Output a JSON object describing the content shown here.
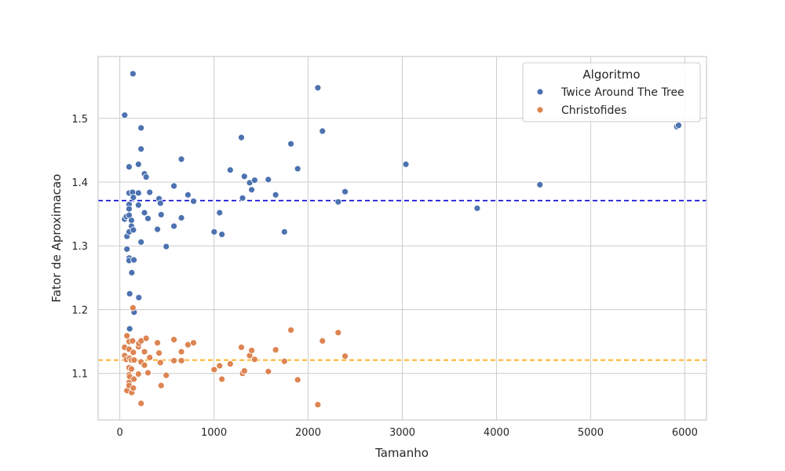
{
  "chart_data": {
    "type": "scatter",
    "title": "",
    "xlabel": "Tamanho",
    "ylabel": "Fator de Aproximacao",
    "xlim": [
      -230,
      6230
    ],
    "ylim": [
      1.027,
      1.597
    ],
    "xticks": [
      0,
      1000,
      2000,
      3000,
      4000,
      5000,
      6000
    ],
    "yticks": [
      1.1,
      1.2,
      1.3,
      1.4,
      1.5
    ],
    "grid": true,
    "legend": {
      "title": "Algoritmo",
      "placement": "top-right"
    },
    "series": [
      {
        "name": "Twice Around The Tree",
        "color": "#4c72b0",
        "mean_line": 1.371,
        "mean_line_color": "#0000cd",
        "points": [
          [
            52,
            1.505
          ],
          [
            140,
            1.57
          ],
          [
            51,
            1.342
          ],
          [
            70,
            1.346
          ],
          [
            76,
            1.315
          ],
          [
            76,
            1.295
          ],
          [
            99,
            1.424
          ],
          [
            99,
            1.383
          ],
          [
            99,
            1.365
          ],
          [
            99,
            1.358
          ],
          [
            99,
            1.348
          ],
          [
            99,
            1.322
          ],
          [
            99,
            1.281
          ],
          [
            99,
            1.277
          ],
          [
            105,
            1.225
          ],
          [
            105,
            1.17
          ],
          [
            124,
            1.34
          ],
          [
            124,
            1.331
          ],
          [
            127,
            1.258
          ],
          [
            136,
            1.384
          ],
          [
            144,
            1.376
          ],
          [
            144,
            1.325
          ],
          [
            150,
            1.278
          ],
          [
            152,
            1.196
          ],
          [
            198,
            1.428
          ],
          [
            198,
            1.383
          ],
          [
            198,
            1.364
          ],
          [
            202,
            1.219
          ],
          [
            226,
            1.485
          ],
          [
            226,
            1.452
          ],
          [
            226,
            1.306
          ],
          [
            262,
            1.413
          ],
          [
            262,
            1.352
          ],
          [
            280,
            1.408
          ],
          [
            299,
            1.343
          ],
          [
            318,
            1.384
          ],
          [
            400,
            1.326
          ],
          [
            417,
            1.374
          ],
          [
            431,
            1.367
          ],
          [
            439,
            1.349
          ],
          [
            493,
            1.299
          ],
          [
            575,
            1.394
          ],
          [
            575,
            1.331
          ],
          [
            654,
            1.436
          ],
          [
            654,
            1.344
          ],
          [
            724,
            1.38
          ],
          [
            783,
            1.37
          ],
          [
            1002,
            1.322
          ],
          [
            1060,
            1.352
          ],
          [
            1084,
            1.318
          ],
          [
            1173,
            1.419
          ],
          [
            1291,
            1.47
          ],
          [
            1304,
            1.375
          ],
          [
            1323,
            1.409
          ],
          [
            1379,
            1.399
          ],
          [
            1400,
            1.388
          ],
          [
            1432,
            1.403
          ],
          [
            1577,
            1.404
          ],
          [
            1655,
            1.38
          ],
          [
            1748,
            1.322
          ],
          [
            1817,
            1.46
          ],
          [
            1889,
            1.421
          ],
          [
            2103,
            1.548
          ],
          [
            2152,
            1.48
          ],
          [
            2319,
            1.369
          ],
          [
            2392,
            1.385
          ],
          [
            3038,
            1.428
          ],
          [
            3795,
            1.359
          ],
          [
            4461,
            1.396
          ],
          [
            5915,
            1.487
          ],
          [
            5934,
            1.489
          ]
        ]
      },
      {
        "name": "Christofides",
        "color": "#dd8452",
        "mean_line": 1.121,
        "mean_line_color": "#ffa500",
        "points": [
          [
            51,
            1.141
          ],
          [
            52,
            1.128
          ],
          [
            70,
            1.122
          ],
          [
            76,
            1.159
          ],
          [
            76,
            1.073
          ],
          [
            99,
            1.15
          ],
          [
            99,
            1.138
          ],
          [
            99,
            1.109
          ],
          [
            99,
            1.098
          ],
          [
            99,
            1.086
          ],
          [
            99,
            1.081
          ],
          [
            105,
            1.124
          ],
          [
            105,
            1.095
          ],
          [
            124,
            1.121
          ],
          [
            124,
            1.107
          ],
          [
            127,
            1.07
          ],
          [
            136,
            1.151
          ],
          [
            140,
            1.203
          ],
          [
            144,
            1.133
          ],
          [
            144,
            1.077
          ],
          [
            150,
            1.091
          ],
          [
            152,
            1.121
          ],
          [
            198,
            1.142
          ],
          [
            198,
            1.099
          ],
          [
            202,
            1.147
          ],
          [
            226,
            1.151
          ],
          [
            226,
            1.118
          ],
          [
            226,
            1.053
          ],
          [
            262,
            1.134
          ],
          [
            262,
            1.113
          ],
          [
            280,
            1.155
          ],
          [
            299,
            1.101
          ],
          [
            318,
            1.125
          ],
          [
            400,
            1.148
          ],
          [
            417,
            1.132
          ],
          [
            431,
            1.117
          ],
          [
            439,
            1.081
          ],
          [
            493,
            1.097
          ],
          [
            575,
            1.153
          ],
          [
            575,
            1.12
          ],
          [
            654,
            1.134
          ],
          [
            654,
            1.12
          ],
          [
            724,
            1.145
          ],
          [
            783,
            1.148
          ],
          [
            1002,
            1.106
          ],
          [
            1060,
            1.112
          ],
          [
            1084,
            1.091
          ],
          [
            1173,
            1.115
          ],
          [
            1291,
            1.141
          ],
          [
            1304,
            1.1
          ],
          [
            1323,
            1.104
          ],
          [
            1379,
            1.128
          ],
          [
            1400,
            1.136
          ],
          [
            1432,
            1.122
          ],
          [
            1577,
            1.103
          ],
          [
            1655,
            1.137
          ],
          [
            1748,
            1.119
          ],
          [
            1817,
            1.168
          ],
          [
            1889,
            1.09
          ],
          [
            2103,
            1.051
          ],
          [
            2152,
            1.151
          ],
          [
            2319,
            1.164
          ],
          [
            2392,
            1.127
          ]
        ]
      }
    ]
  }
}
